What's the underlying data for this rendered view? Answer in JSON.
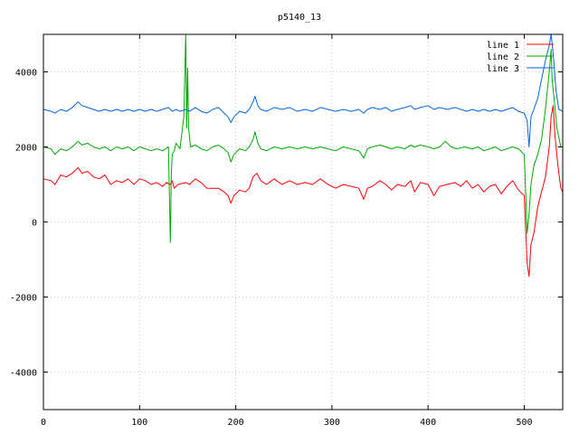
{
  "chart_data": {
    "type": "line",
    "title": "p5140_13",
    "xlabel": "",
    "ylabel": "",
    "xlim": [
      0,
      540
    ],
    "ylim": [
      -5000,
      5000
    ],
    "x_ticks": [
      0,
      100,
      200,
      300,
      400,
      500
    ],
    "y_ticks": [
      -4000,
      -2000,
      0,
      2000,
      4000
    ],
    "grid": true,
    "legend_position": "top-right",
    "series": [
      {
        "name": "line 1",
        "color": "#ff0000",
        "points": [
          [
            0,
            1150
          ],
          [
            8,
            1100
          ],
          [
            12,
            1000
          ],
          [
            18,
            1250
          ],
          [
            24,
            1200
          ],
          [
            30,
            1300
          ],
          [
            36,
            1450
          ],
          [
            40,
            1300
          ],
          [
            46,
            1350
          ],
          [
            52,
            1200
          ],
          [
            58,
            1150
          ],
          [
            64,
            1250
          ],
          [
            70,
            1000
          ],
          [
            76,
            1100
          ],
          [
            82,
            1050
          ],
          [
            88,
            1150
          ],
          [
            94,
            1000
          ],
          [
            100,
            1150
          ],
          [
            106,
            1100
          ],
          [
            112,
            1000
          ],
          [
            118,
            1050
          ],
          [
            124,
            950
          ],
          [
            128,
            1050
          ],
          [
            132,
            1000
          ],
          [
            134,
            1100
          ],
          [
            136,
            900
          ],
          [
            140,
            1000
          ],
          [
            148,
            1050
          ],
          [
            152,
            1000
          ],
          [
            158,
            1150
          ],
          [
            164,
            1050
          ],
          [
            170,
            900
          ],
          [
            176,
            900
          ],
          [
            182,
            900
          ],
          [
            188,
            800
          ],
          [
            192,
            700
          ],
          [
            195,
            500
          ],
          [
            198,
            700
          ],
          [
            204,
            850
          ],
          [
            210,
            800
          ],
          [
            214,
            900
          ],
          [
            218,
            1200
          ],
          [
            222,
            1300
          ],
          [
            226,
            1100
          ],
          [
            232,
            1000
          ],
          [
            240,
            1150
          ],
          [
            248,
            1000
          ],
          [
            256,
            1100
          ],
          [
            264,
            1000
          ],
          [
            272,
            1050
          ],
          [
            280,
            1000
          ],
          [
            288,
            1150
          ],
          [
            296,
            1000
          ],
          [
            304,
            900
          ],
          [
            312,
            1000
          ],
          [
            320,
            950
          ],
          [
            328,
            900
          ],
          [
            333,
            600
          ],
          [
            337,
            900
          ],
          [
            342,
            950
          ],
          [
            350,
            1100
          ],
          [
            356,
            1000
          ],
          [
            362,
            850
          ],
          [
            368,
            1000
          ],
          [
            376,
            950
          ],
          [
            382,
            1100
          ],
          [
            386,
            800
          ],
          [
            392,
            1050
          ],
          [
            400,
            1000
          ],
          [
            406,
            700
          ],
          [
            412,
            950
          ],
          [
            420,
            1000
          ],
          [
            428,
            1050
          ],
          [
            434,
            950
          ],
          [
            440,
            1100
          ],
          [
            446,
            900
          ],
          [
            452,
            1000
          ],
          [
            458,
            800
          ],
          [
            464,
            950
          ],
          [
            470,
            1000
          ],
          [
            476,
            750
          ],
          [
            482,
            950
          ],
          [
            488,
            1100
          ],
          [
            494,
            850
          ],
          [
            500,
            700
          ],
          [
            503,
            -1100
          ],
          [
            505,
            -1450
          ],
          [
            507,
            -600
          ],
          [
            510,
            -300
          ],
          [
            514,
            400
          ],
          [
            518,
            800
          ],
          [
            522,
            1200
          ],
          [
            526,
            2000
          ],
          [
            528,
            2800
          ],
          [
            530,
            3100
          ],
          [
            532,
            2300
          ],
          [
            535,
            1500
          ],
          [
            538,
            900
          ],
          [
            540,
            800
          ]
        ]
      },
      {
        "name": "line 2",
        "color": "#00aa00",
        "points": [
          [
            0,
            2000
          ],
          [
            8,
            1950
          ],
          [
            12,
            1800
          ],
          [
            18,
            1950
          ],
          [
            24,
            1900
          ],
          [
            30,
            2000
          ],
          [
            36,
            2150
          ],
          [
            40,
            2050
          ],
          [
            46,
            2100
          ],
          [
            52,
            2000
          ],
          [
            58,
            1950
          ],
          [
            64,
            2000
          ],
          [
            70,
            1900
          ],
          [
            76,
            2000
          ],
          [
            82,
            1950
          ],
          [
            88,
            2000
          ],
          [
            94,
            1900
          ],
          [
            100,
            2000
          ],
          [
            106,
            1950
          ],
          [
            112,
            1900
          ],
          [
            118,
            1950
          ],
          [
            124,
            1900
          ],
          [
            130,
            2000
          ],
          [
            132,
            -550
          ],
          [
            133,
            1300
          ],
          [
            134,
            1800
          ],
          [
            136,
            1900
          ],
          [
            138,
            2100
          ],
          [
            142,
            1950
          ],
          [
            146,
            2800
          ],
          [
            148,
            5000
          ],
          [
            149,
            2500
          ],
          [
            150,
            4100
          ],
          [
            151,
            2500
          ],
          [
            153,
            2000
          ],
          [
            158,
            2050
          ],
          [
            164,
            1950
          ],
          [
            170,
            1900
          ],
          [
            176,
            2000
          ],
          [
            182,
            2050
          ],
          [
            188,
            1950
          ],
          [
            192,
            1850
          ],
          [
            195,
            1600
          ],
          [
            198,
            1800
          ],
          [
            204,
            1950
          ],
          [
            210,
            1900
          ],
          [
            214,
            2000
          ],
          [
            218,
            2200
          ],
          [
            220,
            2400
          ],
          [
            223,
            2100
          ],
          [
            226,
            1950
          ],
          [
            232,
            1900
          ],
          [
            240,
            2000
          ],
          [
            248,
            1950
          ],
          [
            256,
            2000
          ],
          [
            264,
            1950
          ],
          [
            272,
            2000
          ],
          [
            280,
            1950
          ],
          [
            288,
            2000
          ],
          [
            296,
            1950
          ],
          [
            304,
            1900
          ],
          [
            312,
            2000
          ],
          [
            320,
            1950
          ],
          [
            328,
            1900
          ],
          [
            333,
            1700
          ],
          [
            337,
            1950
          ],
          [
            342,
            2000
          ],
          [
            350,
            2050
          ],
          [
            356,
            2000
          ],
          [
            362,
            1950
          ],
          [
            368,
            2000
          ],
          [
            376,
            1950
          ],
          [
            382,
            2050
          ],
          [
            386,
            2000
          ],
          [
            392,
            2050
          ],
          [
            400,
            2000
          ],
          [
            406,
            1950
          ],
          [
            412,
            2000
          ],
          [
            418,
            2150
          ],
          [
            424,
            2000
          ],
          [
            430,
            1950
          ],
          [
            438,
            2000
          ],
          [
            446,
            1950
          ],
          [
            452,
            2000
          ],
          [
            458,
            1900
          ],
          [
            464,
            1950
          ],
          [
            470,
            2000
          ],
          [
            476,
            1900
          ],
          [
            482,
            1950
          ],
          [
            488,
            2000
          ],
          [
            494,
            1950
          ],
          [
            500,
            1800
          ],
          [
            503,
            -300
          ],
          [
            505,
            200
          ],
          [
            507,
            1000
          ],
          [
            510,
            1500
          ],
          [
            514,
            1800
          ],
          [
            518,
            2200
          ],
          [
            522,
            3000
          ],
          [
            526,
            4000
          ],
          [
            528,
            4600
          ],
          [
            529,
            3800
          ],
          [
            531,
            3300
          ],
          [
            534,
            2500
          ],
          [
            538,
            2000
          ],
          [
            540,
            2000
          ]
        ]
      },
      {
        "name": "line 3",
        "color": "#0066dd",
        "points": [
          [
            0,
            3000
          ],
          [
            8,
            2950
          ],
          [
            12,
            2900
          ],
          [
            18,
            3000
          ],
          [
            24,
            2950
          ],
          [
            30,
            3050
          ],
          [
            36,
            3200
          ],
          [
            40,
            3100
          ],
          [
            46,
            3050
          ],
          [
            52,
            3000
          ],
          [
            58,
            2950
          ],
          [
            64,
            3000
          ],
          [
            70,
            2950
          ],
          [
            76,
            3000
          ],
          [
            82,
            2950
          ],
          [
            88,
            3000
          ],
          [
            94,
            2950
          ],
          [
            100,
            3000
          ],
          [
            106,
            2950
          ],
          [
            112,
            3000
          ],
          [
            118,
            2950
          ],
          [
            124,
            3000
          ],
          [
            130,
            3050
          ],
          [
            134,
            2950
          ],
          [
            138,
            3000
          ],
          [
            142,
            2950
          ],
          [
            148,
            3000
          ],
          [
            152,
            2950
          ],
          [
            158,
            3050
          ],
          [
            164,
            2950
          ],
          [
            170,
            2900
          ],
          [
            176,
            3000
          ],
          [
            182,
            3050
          ],
          [
            188,
            2900
          ],
          [
            192,
            2800
          ],
          [
            195,
            2650
          ],
          [
            198,
            2800
          ],
          [
            204,
            2950
          ],
          [
            210,
            2900
          ],
          [
            214,
            3000
          ],
          [
            218,
            3200
          ],
          [
            220,
            3350
          ],
          [
            223,
            3100
          ],
          [
            226,
            3000
          ],
          [
            232,
            2950
          ],
          [
            240,
            3050
          ],
          [
            248,
            3000
          ],
          [
            256,
            3050
          ],
          [
            264,
            2950
          ],
          [
            272,
            3000
          ],
          [
            280,
            2950
          ],
          [
            288,
            3050
          ],
          [
            296,
            3000
          ],
          [
            304,
            2950
          ],
          [
            312,
            3000
          ],
          [
            320,
            2950
          ],
          [
            328,
            3000
          ],
          [
            333,
            2900
          ],
          [
            337,
            3000
          ],
          [
            342,
            3050
          ],
          [
            350,
            3000
          ],
          [
            356,
            3050
          ],
          [
            362,
            2950
          ],
          [
            368,
            3000
          ],
          [
            376,
            3050
          ],
          [
            382,
            3100
          ],
          [
            386,
            3000
          ],
          [
            392,
            3050
          ],
          [
            400,
            3100
          ],
          [
            406,
            3000
          ],
          [
            412,
            3050
          ],
          [
            420,
            3000
          ],
          [
            428,
            3050
          ],
          [
            434,
            3000
          ],
          [
            440,
            2950
          ],
          [
            446,
            3000
          ],
          [
            452,
            2950
          ],
          [
            458,
            3000
          ],
          [
            464,
            2950
          ],
          [
            470,
            3000
          ],
          [
            476,
            2950
          ],
          [
            482,
            3000
          ],
          [
            488,
            3050
          ],
          [
            494,
            2950
          ],
          [
            500,
            2900
          ],
          [
            503,
            2700
          ],
          [
            505,
            2000
          ],
          [
            507,
            2800
          ],
          [
            510,
            3000
          ],
          [
            514,
            3300
          ],
          [
            518,
            3800
          ],
          [
            522,
            4300
          ],
          [
            526,
            4700
          ],
          [
            528,
            5000
          ],
          [
            530,
            4500
          ],
          [
            533,
            3500
          ],
          [
            536,
            3000
          ],
          [
            540,
            2950
          ]
        ]
      }
    ]
  }
}
